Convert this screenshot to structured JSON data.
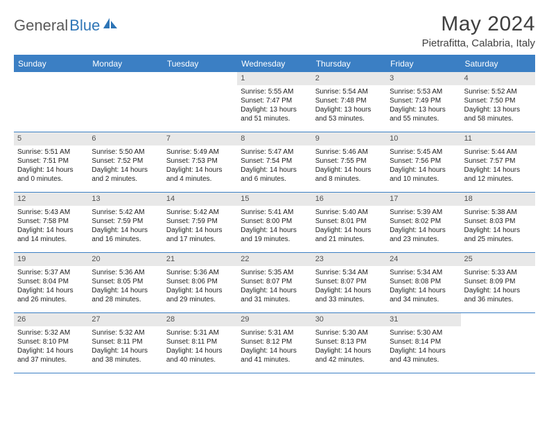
{
  "logo": {
    "text_gray": "General",
    "text_blue": "Blue"
  },
  "title": "May 2024",
  "location": "Pietrafitta, Calabria, Italy",
  "colors": {
    "header_blue": "#3b7fc4",
    "daynum_bg": "#e8e8e8",
    "logo_gray": "#5a5a5a",
    "logo_blue": "#2e75b6",
    "text": "#202020"
  },
  "weekdays": [
    "Sunday",
    "Monday",
    "Tuesday",
    "Wednesday",
    "Thursday",
    "Friday",
    "Saturday"
  ],
  "weeks": [
    [
      {
        "n": "",
        "sr": "",
        "ss": "",
        "dl": ""
      },
      {
        "n": "",
        "sr": "",
        "ss": "",
        "dl": ""
      },
      {
        "n": "",
        "sr": "",
        "ss": "",
        "dl": ""
      },
      {
        "n": "1",
        "sr": "Sunrise: 5:55 AM",
        "ss": "Sunset: 7:47 PM",
        "dl": "Daylight: 13 hours and 51 minutes."
      },
      {
        "n": "2",
        "sr": "Sunrise: 5:54 AM",
        "ss": "Sunset: 7:48 PM",
        "dl": "Daylight: 13 hours and 53 minutes."
      },
      {
        "n": "3",
        "sr": "Sunrise: 5:53 AM",
        "ss": "Sunset: 7:49 PM",
        "dl": "Daylight: 13 hours and 55 minutes."
      },
      {
        "n": "4",
        "sr": "Sunrise: 5:52 AM",
        "ss": "Sunset: 7:50 PM",
        "dl": "Daylight: 13 hours and 58 minutes."
      }
    ],
    [
      {
        "n": "5",
        "sr": "Sunrise: 5:51 AM",
        "ss": "Sunset: 7:51 PM",
        "dl": "Daylight: 14 hours and 0 minutes."
      },
      {
        "n": "6",
        "sr": "Sunrise: 5:50 AM",
        "ss": "Sunset: 7:52 PM",
        "dl": "Daylight: 14 hours and 2 minutes."
      },
      {
        "n": "7",
        "sr": "Sunrise: 5:49 AM",
        "ss": "Sunset: 7:53 PM",
        "dl": "Daylight: 14 hours and 4 minutes."
      },
      {
        "n": "8",
        "sr": "Sunrise: 5:47 AM",
        "ss": "Sunset: 7:54 PM",
        "dl": "Daylight: 14 hours and 6 minutes."
      },
      {
        "n": "9",
        "sr": "Sunrise: 5:46 AM",
        "ss": "Sunset: 7:55 PM",
        "dl": "Daylight: 14 hours and 8 minutes."
      },
      {
        "n": "10",
        "sr": "Sunrise: 5:45 AM",
        "ss": "Sunset: 7:56 PM",
        "dl": "Daylight: 14 hours and 10 minutes."
      },
      {
        "n": "11",
        "sr": "Sunrise: 5:44 AM",
        "ss": "Sunset: 7:57 PM",
        "dl": "Daylight: 14 hours and 12 minutes."
      }
    ],
    [
      {
        "n": "12",
        "sr": "Sunrise: 5:43 AM",
        "ss": "Sunset: 7:58 PM",
        "dl": "Daylight: 14 hours and 14 minutes."
      },
      {
        "n": "13",
        "sr": "Sunrise: 5:42 AM",
        "ss": "Sunset: 7:59 PM",
        "dl": "Daylight: 14 hours and 16 minutes."
      },
      {
        "n": "14",
        "sr": "Sunrise: 5:42 AM",
        "ss": "Sunset: 7:59 PM",
        "dl": "Daylight: 14 hours and 17 minutes."
      },
      {
        "n": "15",
        "sr": "Sunrise: 5:41 AM",
        "ss": "Sunset: 8:00 PM",
        "dl": "Daylight: 14 hours and 19 minutes."
      },
      {
        "n": "16",
        "sr": "Sunrise: 5:40 AM",
        "ss": "Sunset: 8:01 PM",
        "dl": "Daylight: 14 hours and 21 minutes."
      },
      {
        "n": "17",
        "sr": "Sunrise: 5:39 AM",
        "ss": "Sunset: 8:02 PM",
        "dl": "Daylight: 14 hours and 23 minutes."
      },
      {
        "n": "18",
        "sr": "Sunrise: 5:38 AM",
        "ss": "Sunset: 8:03 PM",
        "dl": "Daylight: 14 hours and 25 minutes."
      }
    ],
    [
      {
        "n": "19",
        "sr": "Sunrise: 5:37 AM",
        "ss": "Sunset: 8:04 PM",
        "dl": "Daylight: 14 hours and 26 minutes."
      },
      {
        "n": "20",
        "sr": "Sunrise: 5:36 AM",
        "ss": "Sunset: 8:05 PM",
        "dl": "Daylight: 14 hours and 28 minutes."
      },
      {
        "n": "21",
        "sr": "Sunrise: 5:36 AM",
        "ss": "Sunset: 8:06 PM",
        "dl": "Daylight: 14 hours and 29 minutes."
      },
      {
        "n": "22",
        "sr": "Sunrise: 5:35 AM",
        "ss": "Sunset: 8:07 PM",
        "dl": "Daylight: 14 hours and 31 minutes."
      },
      {
        "n": "23",
        "sr": "Sunrise: 5:34 AM",
        "ss": "Sunset: 8:07 PM",
        "dl": "Daylight: 14 hours and 33 minutes."
      },
      {
        "n": "24",
        "sr": "Sunrise: 5:34 AM",
        "ss": "Sunset: 8:08 PM",
        "dl": "Daylight: 14 hours and 34 minutes."
      },
      {
        "n": "25",
        "sr": "Sunrise: 5:33 AM",
        "ss": "Sunset: 8:09 PM",
        "dl": "Daylight: 14 hours and 36 minutes."
      }
    ],
    [
      {
        "n": "26",
        "sr": "Sunrise: 5:32 AM",
        "ss": "Sunset: 8:10 PM",
        "dl": "Daylight: 14 hours and 37 minutes."
      },
      {
        "n": "27",
        "sr": "Sunrise: 5:32 AM",
        "ss": "Sunset: 8:11 PM",
        "dl": "Daylight: 14 hours and 38 minutes."
      },
      {
        "n": "28",
        "sr": "Sunrise: 5:31 AM",
        "ss": "Sunset: 8:11 PM",
        "dl": "Daylight: 14 hours and 40 minutes."
      },
      {
        "n": "29",
        "sr": "Sunrise: 5:31 AM",
        "ss": "Sunset: 8:12 PM",
        "dl": "Daylight: 14 hours and 41 minutes."
      },
      {
        "n": "30",
        "sr": "Sunrise: 5:30 AM",
        "ss": "Sunset: 8:13 PM",
        "dl": "Daylight: 14 hours and 42 minutes."
      },
      {
        "n": "31",
        "sr": "Sunrise: 5:30 AM",
        "ss": "Sunset: 8:14 PM",
        "dl": "Daylight: 14 hours and 43 minutes."
      },
      {
        "n": "",
        "sr": "",
        "ss": "",
        "dl": ""
      }
    ]
  ]
}
